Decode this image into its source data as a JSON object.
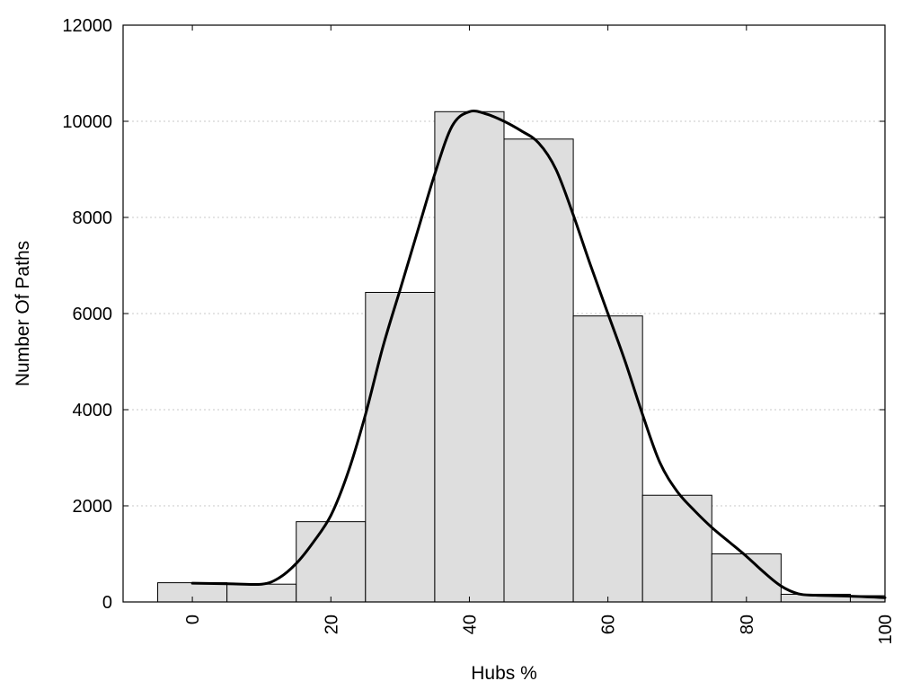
{
  "chart_data": {
    "type": "bar",
    "title": "",
    "xlabel": "Hubs %",
    "ylabel": "Number Of Paths",
    "xlim": [
      -10,
      100
    ],
    "ylim": [
      0,
      12000
    ],
    "x_ticks": [
      "0",
      "20",
      "40",
      "60",
      "80",
      "100"
    ],
    "y_ticks": [
      "0",
      "2000",
      "4000",
      "6000",
      "8000",
      "10000",
      "12000"
    ],
    "grid": "horizontal dotted",
    "bar_color": "#dedede",
    "bin_width": 10,
    "bins": [
      {
        "x": 0,
        "value": 400
      },
      {
        "x": 10,
        "value": 370
      },
      {
        "x": 20,
        "value": 1670
      },
      {
        "x": 30,
        "value": 6440
      },
      {
        "x": 40,
        "value": 10200
      },
      {
        "x": 50,
        "value": 9630
      },
      {
        "x": 60,
        "value": 5950
      },
      {
        "x": 70,
        "value": 2220
      },
      {
        "x": 80,
        "value": 1000
      },
      {
        "x": 90,
        "value": 160
      },
      {
        "x": 100,
        "value": 130
      }
    ],
    "curve": {
      "type": "line",
      "color": "#000000",
      "points": [
        [
          0,
          390
        ],
        [
          5,
          380
        ],
        [
          10,
          370
        ],
        [
          12.5,
          500
        ],
        [
          15,
          800
        ],
        [
          17.5,
          1250
        ],
        [
          20,
          1800
        ],
        [
          22.5,
          2700
        ],
        [
          25,
          3900
        ],
        [
          27.5,
          5300
        ],
        [
          30,
          6500
        ],
        [
          32.5,
          7700
        ],
        [
          35,
          8900
        ],
        [
          37.5,
          9900
        ],
        [
          40,
          10200
        ],
        [
          42.5,
          10150
        ],
        [
          45,
          10000
        ],
        [
          47.5,
          9800
        ],
        [
          50,
          9550
        ],
        [
          52.5,
          9000
        ],
        [
          55,
          8050
        ],
        [
          57.5,
          7000
        ],
        [
          60,
          6000
        ],
        [
          62.5,
          5000
        ],
        [
          65,
          3900
        ],
        [
          67.5,
          2900
        ],
        [
          70,
          2300
        ],
        [
          72.5,
          1900
        ],
        [
          75,
          1550
        ],
        [
          77.5,
          1250
        ],
        [
          80,
          950
        ],
        [
          82.5,
          620
        ],
        [
          85,
          330
        ],
        [
          87.5,
          170
        ],
        [
          90,
          140
        ],
        [
          95,
          120
        ],
        [
          100,
          90
        ]
      ]
    }
  }
}
